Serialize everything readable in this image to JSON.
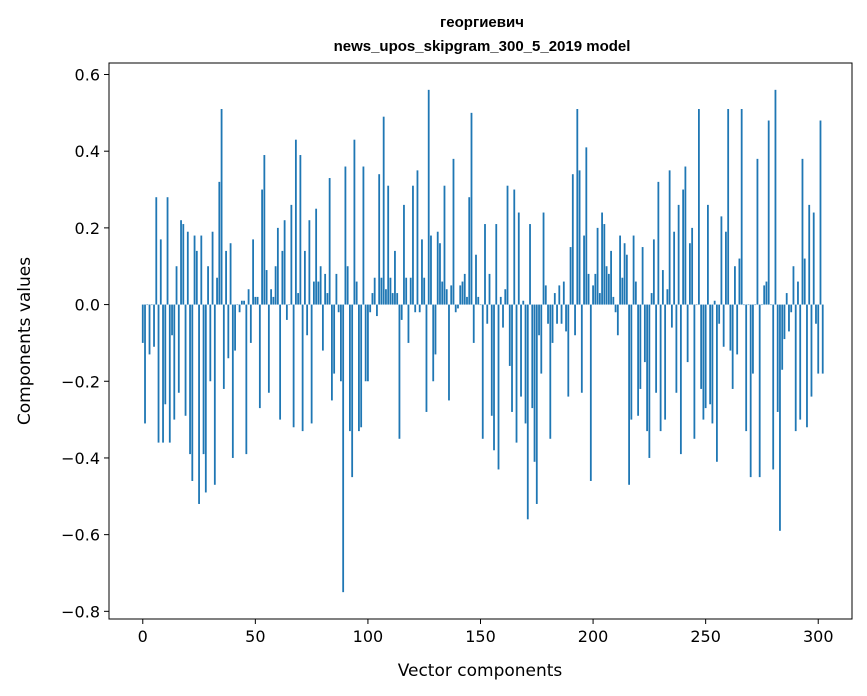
{
  "chart_data": {
    "type": "bar",
    "title_line1": "георгиевич",
    "title_line2": "news_upos_skipgram_300_5_2019 model",
    "xlabel": "Vector components",
    "ylabel": "Components values",
    "xlim": [
      -15,
      315
    ],
    "ylim": [
      -0.82,
      0.63
    ],
    "xticks": [
      0,
      50,
      100,
      150,
      200,
      250,
      300
    ],
    "xtick_labels": [
      "0",
      "50",
      "100",
      "150",
      "200",
      "250",
      "300"
    ],
    "yticks": [
      -0.8,
      -0.6,
      -0.4,
      -0.2,
      0.0,
      0.2,
      0.4,
      0.6
    ],
    "ytick_labels": [
      "−0.8",
      "−0.6",
      "−0.4",
      "−0.2",
      "0.0",
      "0.2",
      "0.4",
      "0.6"
    ],
    "bar_color": "#1f77b4",
    "grid": false,
    "values": [
      -0.1,
      -0.31,
      0.0,
      -0.13,
      0.0,
      -0.11,
      0.28,
      -0.36,
      0.17,
      -0.36,
      -0.26,
      0.28,
      -0.36,
      -0.08,
      -0.3,
      0.1,
      -0.23,
      0.22,
      0.21,
      -0.29,
      0.19,
      -0.39,
      -0.46,
      0.18,
      0.14,
      -0.52,
      0.18,
      -0.39,
      -0.49,
      0.1,
      -0.2,
      0.19,
      -0.47,
      0.07,
      0.32,
      0.51,
      -0.22,
      0.14,
      -0.14,
      0.16,
      -0.4,
      -0.12,
      0.0,
      -0.02,
      0.01,
      0.01,
      -0.39,
      0.04,
      -0.1,
      0.17,
      0.02,
      0.02,
      -0.27,
      0.3,
      0.39,
      0.09,
      -0.23,
      0.04,
      0.02,
      0.1,
      0.2,
      -0.3,
      0.14,
      0.22,
      -0.04,
      0.0,
      0.26,
      -0.32,
      0.43,
      0.03,
      0.39,
      -0.33,
      0.14,
      -0.08,
      0.22,
      -0.31,
      0.06,
      0.25,
      0.06,
      0.1,
      -0.12,
      0.08,
      0.03,
      0.33,
      -0.25,
      -0.18,
      0.08,
      -0.02,
      -0.2,
      -0.75,
      0.36,
      0.1,
      -0.33,
      -0.45,
      0.43,
      0.06,
      -0.33,
      -0.32,
      0.36,
      -0.2,
      -0.2,
      -0.02,
      0.03,
      0.07,
      -0.03,
      0.34,
      0.07,
      0.49,
      0.04,
      0.31,
      0.07,
      0.03,
      0.14,
      0.03,
      -0.35,
      -0.04,
      0.26,
      0.07,
      -0.1,
      0.07,
      0.31,
      -0.02,
      0.35,
      -0.02,
      0.17,
      0.07,
      -0.28,
      0.56,
      0.18,
      -0.2,
      -0.13,
      0.19,
      0.16,
      0.06,
      0.31,
      0.04,
      -0.25,
      0.05,
      0.38,
      -0.02,
      -0.01,
      0.05,
      0.06,
      0.08,
      0.02,
      0.28,
      0.5,
      -0.1,
      0.13,
      0.02,
      0.0,
      -0.35,
      0.21,
      -0.05,
      0.08,
      -0.29,
      -0.38,
      0.21,
      -0.43,
      0.02,
      -0.06,
      0.04,
      0.31,
      -0.16,
      -0.28,
      0.3,
      -0.36,
      0.24,
      -0.24,
      0.01,
      -0.31,
      -0.56,
      0.21,
      -0.27,
      -0.41,
      -0.52,
      -0.08,
      -0.18,
      0.24,
      0.05,
      -0.05,
      -0.35,
      -0.1,
      0.03,
      -0.05,
      0.05,
      -0.05,
      0.06,
      -0.07,
      -0.24,
      0.15,
      0.34,
      -0.08,
      0.51,
      0.35,
      -0.23,
      0.18,
      0.41,
      0.08,
      -0.46,
      0.05,
      0.08,
      0.2,
      0.03,
      0.24,
      0.21,
      0.1,
      0.08,
      0.14,
      0.02,
      -0.02,
      -0.08,
      0.18,
      0.07,
      0.16,
      0.13,
      -0.47,
      -0.3,
      0.18,
      0.06,
      -0.29,
      -0.22,
      0.15,
      -0.15,
      -0.33,
      -0.4,
      0.03,
      0.17,
      -0.23,
      0.32,
      -0.33,
      0.09,
      -0.3,
      0.04,
      0.35,
      -0.06,
      0.19,
      -0.23,
      0.26,
      -0.39,
      0.3,
      0.36,
      -0.15,
      0.16,
      0.2,
      -0.35,
      0.0,
      0.51,
      -0.22,
      -0.3,
      -0.27,
      0.26,
      -0.26,
      -0.31,
      0.01,
      -0.41,
      -0.05,
      0.23,
      -0.11,
      0.19,
      0.51,
      -0.12,
      -0.22,
      0.1,
      -0.13,
      0.12,
      0.51,
      0.0,
      -0.33,
      0.0,
      -0.45,
      -0.18,
      0.0,
      0.38,
      -0.45,
      0.0,
      0.05,
      0.06,
      0.48,
      0.0,
      -0.43,
      0.56,
      -0.28,
      -0.59,
      -0.17,
      -0.09,
      0.03,
      -0.07,
      -0.02,
      0.1,
      -0.33,
      0.06,
      -0.3,
      0.38,
      0.12,
      -0.32,
      0.26,
      -0.24,
      0.24,
      -0.05,
      -0.18,
      0.48,
      -0.18
    ]
  }
}
